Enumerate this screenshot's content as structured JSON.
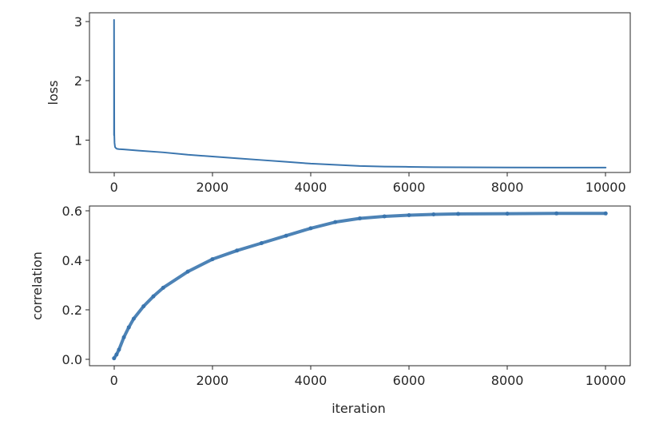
{
  "chart_data": [
    {
      "type": "line",
      "xlabel": "",
      "ylabel": "loss",
      "xlim": [
        -500,
        10500
      ],
      "ylim": [
        0.45,
        3.15
      ],
      "xticks": [
        0,
        2000,
        4000,
        6000,
        8000,
        10000
      ],
      "xtick_labels": [
        "0",
        "2000",
        "4000",
        "6000",
        "8000",
        "10000"
      ],
      "yticks": [
        1,
        2,
        3
      ],
      "ytick_labels": [
        "1",
        "2",
        "3"
      ],
      "grid": false,
      "series": [
        {
          "color": "#3a75ae",
          "x": [
            0,
            0,
            5,
            10,
            20,
            40,
            60,
            100,
            200,
            500,
            1000,
            1500,
            2000,
            2500,
            3000,
            3500,
            4000,
            4500,
            5000,
            5500,
            6000,
            6500,
            7000,
            8000,
            9000,
            10000
          ],
          "values": [
            1.08,
            3.03,
            1.1,
            0.95,
            0.88,
            0.86,
            0.85,
            0.845,
            0.84,
            0.82,
            0.79,
            0.75,
            0.72,
            0.69,
            0.66,
            0.63,
            0.6,
            0.58,
            0.56,
            0.55,
            0.545,
            0.54,
            0.538,
            0.535,
            0.533,
            0.532
          ]
        }
      ]
    },
    {
      "type": "scatter",
      "xlabel": "iteration",
      "ylabel": "correlation",
      "xlim": [
        -500,
        10500
      ],
      "ylim": [
        -0.025,
        0.62
      ],
      "xticks": [
        0,
        2000,
        4000,
        6000,
        8000,
        10000
      ],
      "xtick_labels": [
        "0",
        "2000",
        "4000",
        "6000",
        "8000",
        "10000"
      ],
      "yticks": [
        0.0,
        0.2,
        0.4,
        0.6
      ],
      "ytick_labels": [
        "0.0",
        "0.2",
        "0.4",
        "0.6"
      ],
      "grid": false,
      "series": [
        {
          "color": "#3a75ae",
          "x": [
            0,
            50,
            100,
            200,
            300,
            400,
            600,
            800,
            1000,
            1500,
            2000,
            2500,
            3000,
            3500,
            4000,
            4500,
            5000,
            5500,
            6000,
            6500,
            7000,
            8000,
            9000,
            10000
          ],
          "values": [
            0.005,
            0.02,
            0.04,
            0.09,
            0.13,
            0.165,
            0.215,
            0.255,
            0.29,
            0.355,
            0.405,
            0.44,
            0.47,
            0.5,
            0.53,
            0.555,
            0.57,
            0.578,
            0.583,
            0.586,
            0.588,
            0.589,
            0.59,
            0.59
          ]
        }
      ]
    }
  ]
}
